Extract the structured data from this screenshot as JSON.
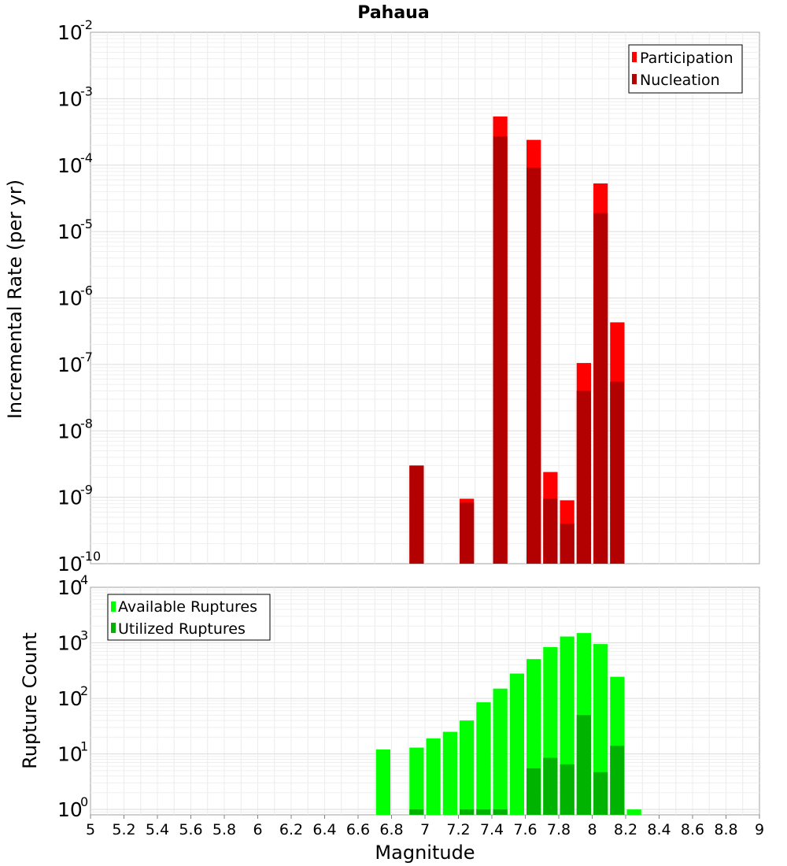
{
  "chart_data": [
    {
      "id": "rate",
      "type": "bar",
      "title": "Pahaua",
      "ylabel": "Incremental Rate (per yr)",
      "xlabel": "",
      "xlim": [
        5,
        9
      ],
      "ylim": [
        1e-10,
        0.01
      ],
      "yscale": "log",
      "bin_width": 0.1,
      "y_ticks": [
        {
          "base": "10",
          "exp": "-10",
          "value": 1e-10
        },
        {
          "base": "10",
          "exp": "-9",
          "value": 1e-09
        },
        {
          "base": "10",
          "exp": "-8",
          "value": 1e-08
        },
        {
          "base": "10",
          "exp": "-7",
          "value": 1e-07
        },
        {
          "base": "10",
          "exp": "-6",
          "value": 1e-06
        },
        {
          "base": "10",
          "exp": "-5",
          "value": 1e-05
        },
        {
          "base": "10",
          "exp": "-4",
          "value": 0.0001
        },
        {
          "base": "10",
          "exp": "-3",
          "value": 0.001
        },
        {
          "base": "10",
          "exp": "-2",
          "value": 0.01
        }
      ],
      "legend": {
        "placement": "top-right"
      },
      "series": [
        {
          "name": "Participation",
          "color": "#ff0000",
          "x": [
            6.95,
            7.25,
            7.45,
            7.65,
            7.75,
            7.85,
            7.95,
            8.05,
            8.15
          ],
          "values": [
            3e-09,
            9.5e-10,
            0.00054,
            0.00024,
            2.4e-09,
            9e-10,
            1.05e-07,
            5.3e-05,
            4.3e-07
          ]
        },
        {
          "name": "Nucleation",
          "color": "#b30000",
          "x": [
            6.95,
            7.25,
            7.45,
            7.65,
            7.75,
            7.85,
            7.95,
            8.05,
            8.15
          ],
          "values": [
            3e-09,
            8.3e-10,
            0.00027,
            9.2e-05,
            9.5e-10,
            4e-10,
            4e-08,
            1.9e-05,
            5.5e-08
          ]
        }
      ]
    },
    {
      "id": "count",
      "type": "bar",
      "title": "",
      "ylabel": "Rupture Count",
      "xlabel": "Magnitude",
      "xlim": [
        5,
        9
      ],
      "ylim": [
        0.8,
        10000
      ],
      "yscale": "log",
      "bin_width": 0.1,
      "x_ticks": [
        "5",
        "5.2",
        "5.4",
        "5.6",
        "5.8",
        "6",
        "6.2",
        "6.4",
        "6.6",
        "6.8",
        "7",
        "7.2",
        "7.4",
        "7.6",
        "7.8",
        "8",
        "8.2",
        "8.4",
        "8.6",
        "8.8",
        "9"
      ],
      "y_ticks": [
        {
          "base": "10",
          "exp": "0",
          "value": 1
        },
        {
          "base": "10",
          "exp": "1",
          "value": 10
        },
        {
          "base": "10",
          "exp": "2",
          "value": 100
        },
        {
          "base": "10",
          "exp": "3",
          "value": 1000
        },
        {
          "base": "10",
          "exp": "4",
          "value": 10000
        }
      ],
      "legend": {
        "placement": "top-left"
      },
      "series": [
        {
          "name": "Available Ruptures",
          "color": "#00ff00",
          "x": [
            6.75,
            6.95,
            7.05,
            7.15,
            7.25,
            7.35,
            7.45,
            7.55,
            7.65,
            7.75,
            7.85,
            7.95,
            8.05,
            8.15,
            8.25
          ],
          "values": [
            12,
            13,
            19,
            25,
            40,
            85,
            150,
            280,
            510,
            840,
            1300,
            1500,
            950,
            245,
            1
          ]
        },
        {
          "name": "Utilized Ruptures",
          "color": "#00b300",
          "x": [
            6.95,
            7.25,
            7.35,
            7.45,
            7.65,
            7.75,
            7.85,
            7.95,
            8.05,
            8.15
          ],
          "values": [
            1,
            1,
            1,
            1,
            5.5,
            8.5,
            6.5,
            50,
            4.7,
            14
          ]
        }
      ]
    }
  ]
}
